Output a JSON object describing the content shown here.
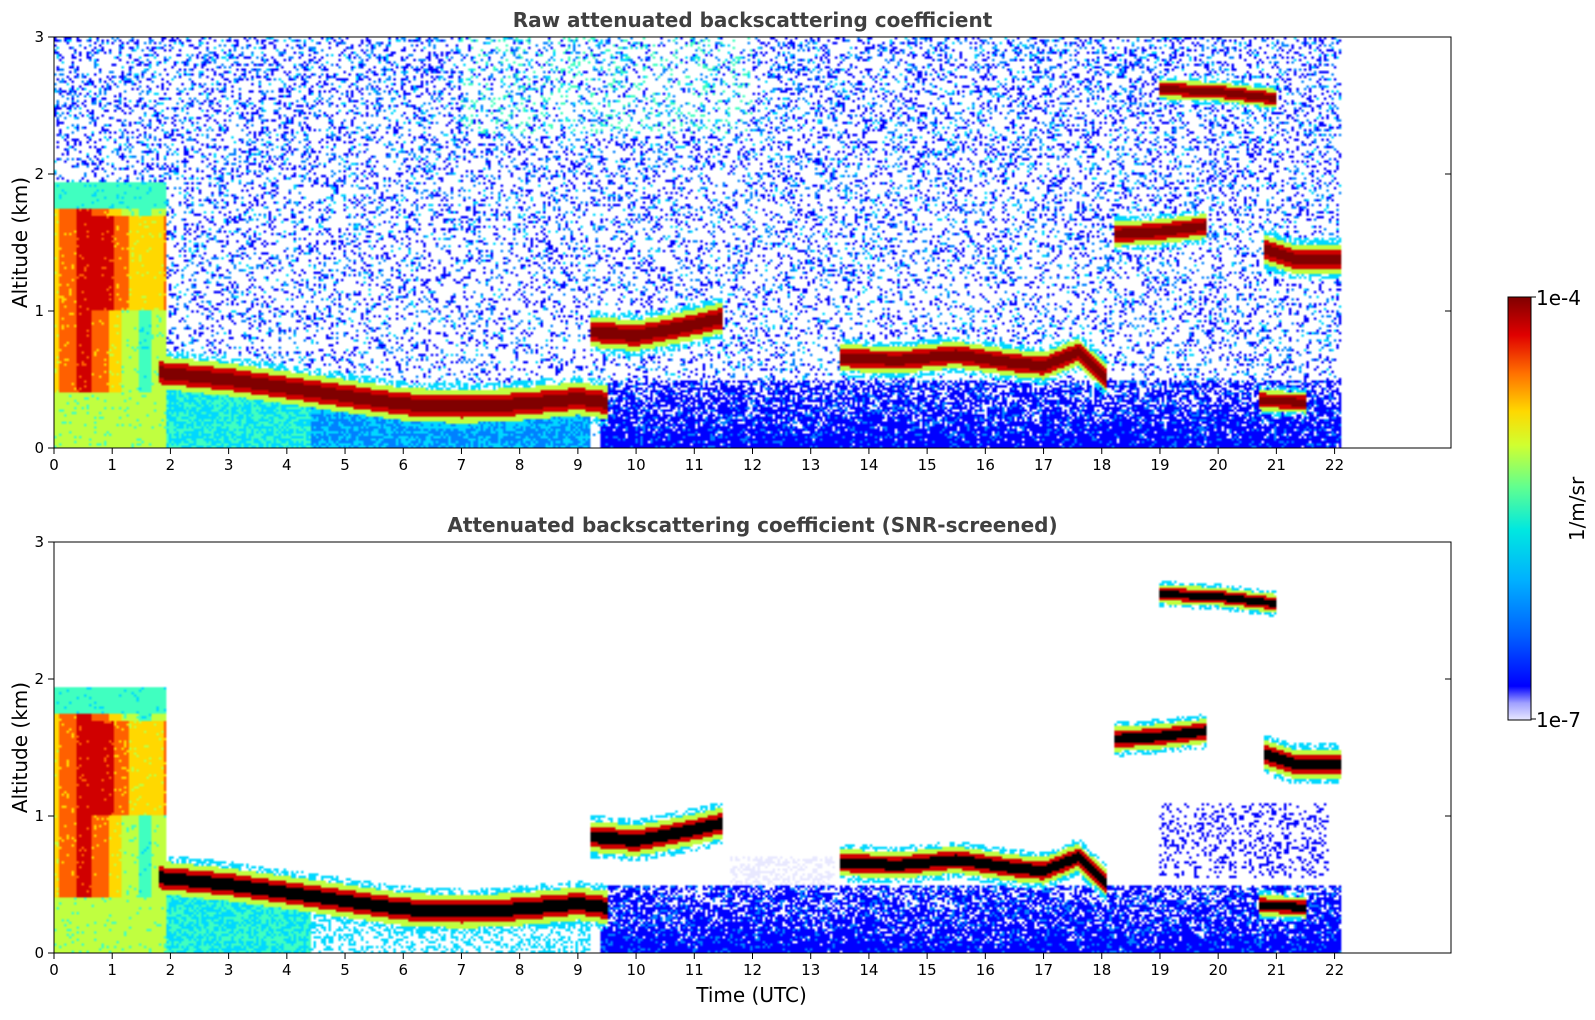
{
  "chart_data": [
    {
      "type": "heatmap",
      "title": "Raw attenuated backscattering coefficient",
      "xlabel": "",
      "ylabel": "Altitude (km)",
      "xlim": [
        0,
        24
      ],
      "ylim": [
        0,
        3
      ],
      "xticks": [
        "0",
        "1",
        "2",
        "3",
        "4",
        "5",
        "6",
        "7",
        "8",
        "9",
        "10",
        "11",
        "12",
        "13",
        "14",
        "15",
        "16",
        "17",
        "18",
        "19",
        "20",
        "21",
        "22"
      ],
      "yticks": [
        "0",
        "1",
        "2",
        "3"
      ],
      "data_extent_hours": [
        0,
        22.1
      ],
      "layers": [
        {
          "feature": "aerosol-layer",
          "t0": 0,
          "t1": 1.9,
          "z0": 0,
          "z1": 1.95,
          "level": "high"
        },
        {
          "feature": "boundary-layer",
          "points": [
            [
              1.8,
              0.55
            ],
            [
              3,
              0.5
            ],
            [
              5,
              0.38
            ],
            [
              6,
              0.32
            ],
            [
              7,
              0.3
            ],
            [
              8,
              0.32
            ],
            [
              9,
              0.36
            ],
            [
              9.5,
              0.33
            ]
          ],
          "thickness": 0.16
        },
        {
          "feature": "cloud",
          "points": [
            [
              9.2,
              0.85
            ],
            [
              10,
              0.82
            ],
            [
              11,
              0.9
            ],
            [
              11.5,
              0.95
            ]
          ],
          "thickness": 0.15
        },
        {
          "feature": "cloud",
          "points": [
            [
              13.5,
              0.66
            ],
            [
              14.5,
              0.64
            ],
            [
              15.5,
              0.68
            ],
            [
              16.5,
              0.62
            ],
            [
              17,
              0.6
            ],
            [
              17.6,
              0.7
            ],
            [
              18.1,
              0.5
            ]
          ],
          "thickness": 0.13
        },
        {
          "feature": "cloud",
          "points": [
            [
              18.2,
              1.56
            ],
            [
              19,
              1.58
            ],
            [
              19.8,
              1.62
            ]
          ],
          "thickness": 0.12
        },
        {
          "feature": "cloud",
          "points": [
            [
              19,
              2.62
            ],
            [
              20,
              2.6
            ],
            [
              21,
              2.55
            ]
          ],
          "thickness": 0.09
        },
        {
          "feature": "cloud",
          "points": [
            [
              20.8,
              1.45
            ],
            [
              21.3,
              1.38
            ],
            [
              22.1,
              1.38
            ]
          ],
          "thickness": 0.14
        },
        {
          "feature": "cloud",
          "points": [
            [
              20.7,
              0.35
            ],
            [
              21.5,
              0.33
            ]
          ],
          "thickness": 0.1
        }
      ]
    },
    {
      "type": "heatmap",
      "title": "Attenuated backscattering coefficient (SNR-screened)",
      "xlabel": "Time (UTC)",
      "ylabel": "Altitude (km)",
      "xlim": [
        0,
        24
      ],
      "ylim": [
        0,
        3
      ],
      "xticks": [
        "0",
        "1",
        "2",
        "3",
        "4",
        "5",
        "6",
        "7",
        "8",
        "9",
        "10",
        "11",
        "12",
        "13",
        "14",
        "15",
        "16",
        "17",
        "18",
        "19",
        "20",
        "21",
        "22"
      ],
      "yticks": [
        "0",
        "1",
        "2",
        "3"
      ],
      "data_extent_hours": [
        0,
        22.1
      ],
      "screened": true
    }
  ],
  "colorbar": {
    "max_label": "1e-4",
    "min_label": "1e-7",
    "label": "1/m/sr",
    "colormap": "jet",
    "colors": [
      "#e8e8ff",
      "#0000ff",
      "#0080ff",
      "#00d8ff",
      "#40ffc0",
      "#c0ff40",
      "#ffd800",
      "#ff6000",
      "#d00000",
      "#800000"
    ]
  }
}
